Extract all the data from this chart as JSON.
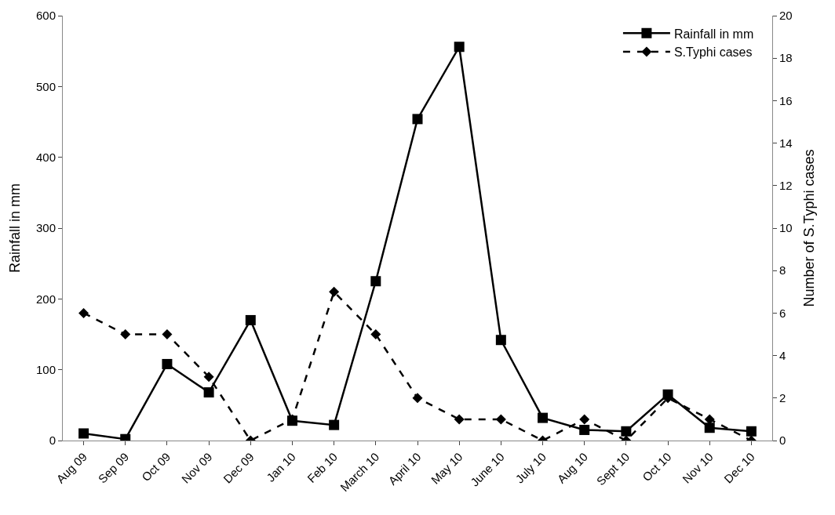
{
  "chart_data": {
    "type": "line",
    "ylabel": "Rainfall in mm",
    "y2label": "Number of S.Typhi cases",
    "categories": [
      "Aug 09",
      "Sep 09",
      "Oct 09",
      "Nov 09",
      "Dec 09",
      "Jan 10",
      "Feb 10",
      "March 10",
      "April 10",
      "May 10",
      "June 10",
      "July 10",
      "Aug 10",
      "Sept 10",
      "Oct 10",
      "Nov 10",
      "Dec 10"
    ],
    "series": [
      {
        "name": "Rainfall in mm",
        "color": "#000000",
        "marker": "square",
        "line_style": "solid",
        "values": [
          10,
          2,
          108,
          68,
          170,
          28,
          22,
          225,
          454,
          556,
          142,
          32,
          15,
          13,
          65,
          18,
          13
        ]
      },
      {
        "name": "S.Typhi cases",
        "color": "#000000",
        "marker": "diamond",
        "line_style": "dashed",
        "axis": "y2",
        "values": [
          6,
          5,
          5,
          3,
          0,
          1,
          7,
          5,
          2,
          1,
          1,
          0,
          1,
          0,
          2,
          1,
          0
        ]
      }
    ],
    "ylim": [
      0,
      600
    ],
    "yticks": [
      0,
      100,
      200,
      300,
      400,
      500,
      600
    ],
    "y2lim": [
      0,
      20
    ],
    "y2ticks": [
      0,
      2,
      4,
      6,
      8,
      10,
      12,
      14,
      16,
      18,
      20
    ],
    "legend": "top right"
  }
}
